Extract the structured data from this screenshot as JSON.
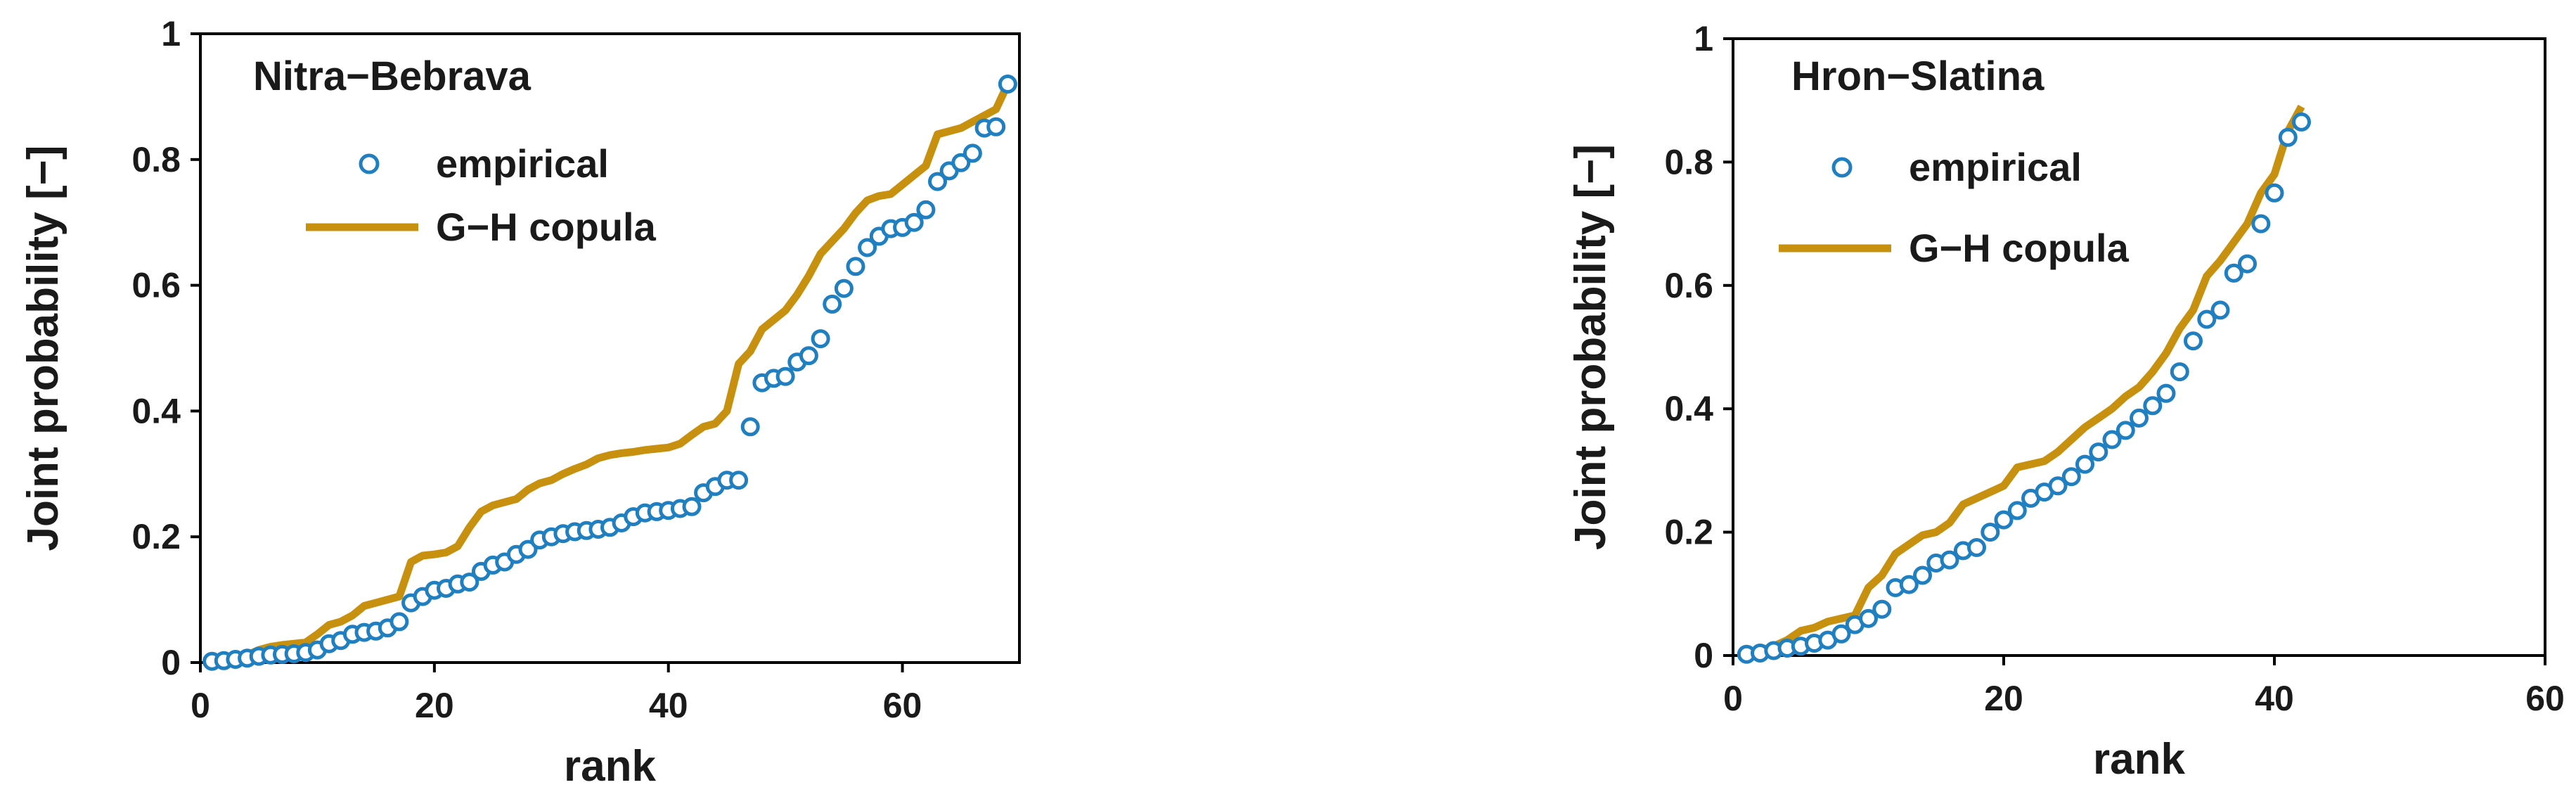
{
  "colors": {
    "empirical": "#1f7fc0",
    "copula": "#c8900f",
    "axis": "#000000"
  },
  "chart_data": [
    {
      "type": "line",
      "title": "Nitra−Bebrava",
      "xlabel": "rank",
      "ylabel": "Joint probability [−]",
      "xlim": [
        0,
        70
      ],
      "ylim": [
        0,
        1
      ],
      "xticks": [
        0,
        20,
        40,
        60
      ],
      "yticks": [
        0,
        0.2,
        0.4,
        0.6,
        0.8,
        1
      ],
      "xtick_labels": [
        "0",
        "20",
        "40",
        "60"
      ],
      "ytick_labels": [
        "0",
        "0.2",
        "0.4",
        "0.6",
        "0.8",
        "1"
      ],
      "legend_position": "top-left",
      "series": [
        {
          "name": "empirical",
          "style": "scatter-open-circle",
          "x": [
            1,
            2,
            3,
            4,
            5,
            6,
            7,
            8,
            9,
            10,
            11,
            12,
            13,
            14,
            15,
            16,
            17,
            18,
            19,
            20,
            21,
            22,
            23,
            24,
            25,
            26,
            27,
            28,
            29,
            30,
            31,
            32,
            33,
            34,
            35,
            36,
            37,
            38,
            39,
            40,
            41,
            42,
            43,
            44,
            45,
            46,
            47,
            48,
            49,
            50,
            51,
            52,
            53,
            54,
            55,
            56,
            57,
            58,
            59,
            60,
            61,
            62,
            63,
            64,
            65,
            66,
            67,
            68,
            69
          ],
          "y": [
            0.002,
            0.003,
            0.005,
            0.007,
            0.01,
            0.012,
            0.013,
            0.014,
            0.016,
            0.02,
            0.03,
            0.035,
            0.045,
            0.048,
            0.05,
            0.055,
            0.065,
            0.095,
            0.105,
            0.115,
            0.118,
            0.125,
            0.128,
            0.145,
            0.155,
            0.16,
            0.172,
            0.18,
            0.195,
            0.2,
            0.205,
            0.208,
            0.21,
            0.212,
            0.215,
            0.222,
            0.232,
            0.238,
            0.24,
            0.242,
            0.245,
            0.248,
            0.27,
            0.28,
            0.29,
            0.29,
            0.375,
            0.445,
            0.452,
            0.455,
            0.478,
            0.488,
            0.515,
            0.57,
            0.595,
            0.63,
            0.66,
            0.678,
            0.69,
            0.692,
            0.7,
            0.72,
            0.765,
            0.782,
            0.795,
            0.81,
            0.85,
            0.852,
            0.92
          ]
        },
        {
          "name": "G−H copula",
          "style": "line",
          "x": [
            1,
            2,
            3,
            4,
            5,
            6,
            7,
            8,
            9,
            10,
            11,
            12,
            13,
            14,
            15,
            16,
            17,
            18,
            19,
            20,
            21,
            22,
            23,
            24,
            25,
            26,
            27,
            28,
            29,
            30,
            31,
            32,
            33,
            34,
            35,
            36,
            37,
            38,
            39,
            40,
            41,
            42,
            43,
            44,
            45,
            46,
            47,
            48,
            49,
            50,
            51,
            52,
            53,
            54,
            55,
            56,
            57,
            58,
            59,
            60,
            61,
            62,
            63,
            64,
            65,
            66,
            67,
            68,
            69
          ],
          "y": [
            0.003,
            0.005,
            0.008,
            0.012,
            0.02,
            0.025,
            0.028,
            0.03,
            0.032,
            0.045,
            0.06,
            0.065,
            0.075,
            0.09,
            0.095,
            0.1,
            0.105,
            0.16,
            0.17,
            0.172,
            0.175,
            0.185,
            0.215,
            0.24,
            0.25,
            0.255,
            0.26,
            0.275,
            0.285,
            0.29,
            0.3,
            0.308,
            0.315,
            0.325,
            0.33,
            0.333,
            0.335,
            0.338,
            0.34,
            0.342,
            0.348,
            0.362,
            0.375,
            0.38,
            0.4,
            0.475,
            0.495,
            0.53,
            0.545,
            0.56,
            0.585,
            0.615,
            0.65,
            0.67,
            0.69,
            0.715,
            0.735,
            0.742,
            0.745,
            0.76,
            0.775,
            0.79,
            0.84,
            0.845,
            0.85,
            0.86,
            0.87,
            0.88,
            0.92
          ]
        }
      ]
    },
    {
      "type": "line",
      "title": "Hron−Slatina",
      "xlabel": "rank",
      "ylabel": "Joint probability [−]",
      "xlim": [
        0,
        60
      ],
      "ylim": [
        0,
        1
      ],
      "xticks": [
        0,
        20,
        40,
        60
      ],
      "yticks": [
        0,
        0.2,
        0.4,
        0.6,
        0.8,
        1
      ],
      "xtick_labels": [
        "0",
        "20",
        "40",
        "60"
      ],
      "ytick_labels": [
        "0",
        "0.2",
        "0.4",
        "0.6",
        "0.8",
        "1"
      ],
      "legend_position": "top-left",
      "series": [
        {
          "name": "empirical",
          "style": "scatter-open-circle",
          "x": [
            1,
            2,
            3,
            4,
            5,
            6,
            7,
            8,
            9,
            10,
            11,
            12,
            13,
            14,
            15,
            16,
            17,
            18,
            19,
            20,
            21,
            22,
            23,
            24,
            25,
            26,
            27,
            28,
            29,
            30,
            31,
            32,
            33,
            34,
            35,
            36,
            37,
            38,
            39,
            40,
            41,
            42
          ],
          "y": [
            0.002,
            0.004,
            0.008,
            0.012,
            0.015,
            0.02,
            0.025,
            0.035,
            0.05,
            0.06,
            0.075,
            0.11,
            0.115,
            0.13,
            0.15,
            0.155,
            0.17,
            0.175,
            0.2,
            0.22,
            0.235,
            0.255,
            0.265,
            0.275,
            0.29,
            0.31,
            0.33,
            0.35,
            0.365,
            0.385,
            0.405,
            0.425,
            0.46,
            0.51,
            0.545,
            0.56,
            0.62,
            0.635,
            0.7,
            0.75,
            0.84,
            0.865
          ]
        },
        {
          "name": "G−H copula",
          "style": "line",
          "x": [
            1,
            2,
            3,
            4,
            5,
            6,
            7,
            8,
            9,
            10,
            11,
            12,
            13,
            14,
            15,
            16,
            17,
            18,
            19,
            20,
            21,
            22,
            23,
            24,
            25,
            26,
            27,
            28,
            29,
            30,
            31,
            32,
            33,
            34,
            35,
            36,
            37,
            38,
            39,
            40,
            41,
            42
          ],
          "y": [
            0.003,
            0.008,
            0.015,
            0.025,
            0.04,
            0.045,
            0.055,
            0.06,
            0.065,
            0.11,
            0.13,
            0.165,
            0.18,
            0.195,
            0.2,
            0.215,
            0.245,
            0.255,
            0.265,
            0.275,
            0.305,
            0.31,
            0.315,
            0.33,
            0.35,
            0.37,
            0.385,
            0.4,
            0.42,
            0.435,
            0.46,
            0.49,
            0.53,
            0.56,
            0.615,
            0.64,
            0.67,
            0.7,
            0.75,
            0.78,
            0.85,
            0.89
          ]
        }
      ]
    }
  ]
}
